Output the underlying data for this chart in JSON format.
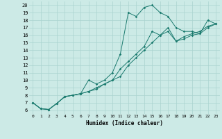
{
  "xlabel": "Humidex (Indice chaleur)",
  "bg_color": "#cceae6",
  "line_color": "#1a7a6e",
  "grid_color": "#aad4d0",
  "xlim": [
    -0.5,
    23.5
  ],
  "ylim": [
    5.5,
    20.5
  ],
  "yticks": [
    6,
    7,
    8,
    9,
    10,
    11,
    12,
    13,
    14,
    15,
    16,
    17,
    18,
    19,
    20
  ],
  "xticks": [
    0,
    1,
    2,
    3,
    4,
    5,
    6,
    7,
    8,
    9,
    10,
    11,
    12,
    13,
    14,
    15,
    16,
    17,
    18,
    19,
    20,
    21,
    22,
    23
  ],
  "series1": [
    [
      0,
      7
    ],
    [
      1,
      6.2
    ],
    [
      2,
      6.1
    ],
    [
      3,
      6.9
    ],
    [
      4,
      7.8
    ],
    [
      5,
      8.0
    ],
    [
      6,
      8.2
    ],
    [
      7,
      10.0
    ],
    [
      8,
      9.5
    ],
    [
      9,
      10.0
    ],
    [
      10,
      11.0
    ],
    [
      11,
      13.5
    ],
    [
      12,
      19.0
    ],
    [
      13,
      18.5
    ],
    [
      14,
      19.7
    ],
    [
      15,
      20.0
    ],
    [
      16,
      19.0
    ],
    [
      17,
      18.5
    ],
    [
      18,
      17.0
    ],
    [
      19,
      16.5
    ],
    [
      20,
      16.5
    ],
    [
      21,
      16.2
    ],
    [
      22,
      18.0
    ],
    [
      23,
      17.5
    ]
  ],
  "series2": [
    [
      0,
      7
    ],
    [
      1,
      6.2
    ],
    [
      2,
      6.1
    ],
    [
      3,
      6.9
    ],
    [
      4,
      7.8
    ],
    [
      5,
      8.0
    ],
    [
      6,
      8.2
    ],
    [
      7,
      8.5
    ],
    [
      8,
      8.8
    ],
    [
      9,
      9.5
    ],
    [
      10,
      10.0
    ],
    [
      11,
      10.5
    ],
    [
      12,
      12.0
    ],
    [
      13,
      13.0
    ],
    [
      14,
      14.0
    ],
    [
      15,
      15.0
    ],
    [
      16,
      16.0
    ],
    [
      17,
      16.5
    ],
    [
      18,
      15.2
    ],
    [
      19,
      15.5
    ],
    [
      20,
      16.0
    ],
    [
      21,
      16.2
    ],
    [
      22,
      17.0
    ],
    [
      23,
      17.5
    ]
  ],
  "series3": [
    [
      0,
      7
    ],
    [
      1,
      6.2
    ],
    [
      2,
      6.1
    ],
    [
      3,
      6.9
    ],
    [
      4,
      7.8
    ],
    [
      5,
      8.0
    ],
    [
      6,
      8.2
    ],
    [
      7,
      8.5
    ],
    [
      8,
      9.0
    ],
    [
      9,
      9.5
    ],
    [
      10,
      10.0
    ],
    [
      11,
      11.5
    ],
    [
      12,
      12.5
    ],
    [
      13,
      13.5
    ],
    [
      14,
      14.5
    ],
    [
      15,
      16.5
    ],
    [
      16,
      16.0
    ],
    [
      17,
      17.0
    ],
    [
      18,
      15.2
    ],
    [
      19,
      15.8
    ],
    [
      20,
      16.2
    ],
    [
      21,
      16.5
    ],
    [
      22,
      17.2
    ],
    [
      23,
      17.5
    ]
  ]
}
